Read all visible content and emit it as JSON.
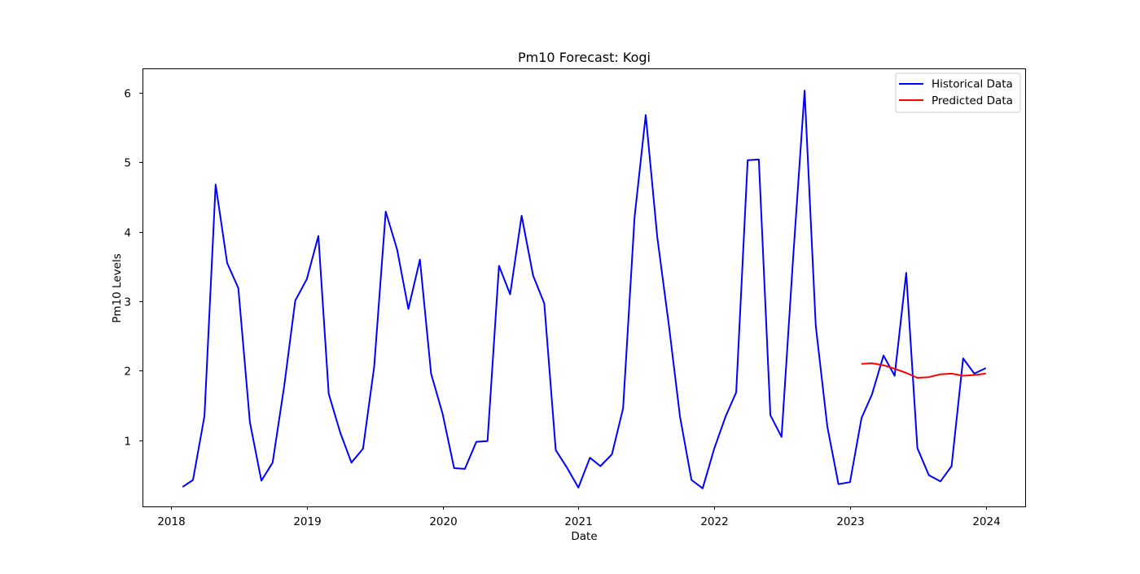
{
  "chart_data": {
    "type": "line",
    "title": "Pm10 Forecast: Kogi",
    "xlabel": "Date",
    "ylabel": "Pm10 Levels",
    "xlim": [
      2017.79,
      2024.29
    ],
    "ylim": [
      0.05,
      6.35
    ],
    "x_ticks": [
      2018,
      2019,
      2020,
      2021,
      2022,
      2023,
      2024
    ],
    "x_tick_labels": [
      "2018",
      "2019",
      "2020",
      "2021",
      "2022",
      "2023",
      "2024"
    ],
    "y_ticks": [
      1,
      2,
      3,
      4,
      5,
      6
    ],
    "y_tick_labels": [
      "1",
      "2",
      "3",
      "4",
      "5",
      "6"
    ],
    "grid": false,
    "legend": "top-right",
    "series": [
      {
        "name": "Historical Data",
        "color": "#0000ff",
        "x": [
          "2018-01-31",
          "2018-02-28",
          "2018-03-31",
          "2018-04-30",
          "2018-05-31",
          "2018-06-30",
          "2018-07-31",
          "2018-08-31",
          "2018-09-30",
          "2018-10-31",
          "2018-11-30",
          "2018-12-31",
          "2019-01-31",
          "2019-02-28",
          "2019-03-31",
          "2019-04-30",
          "2019-05-31",
          "2019-06-30",
          "2019-07-31",
          "2019-08-31",
          "2019-09-30",
          "2019-10-31",
          "2019-11-30",
          "2019-12-31",
          "2020-01-31",
          "2020-02-29",
          "2020-03-31",
          "2020-04-30",
          "2020-05-31",
          "2020-06-30",
          "2020-07-31",
          "2020-08-31",
          "2020-09-30",
          "2020-10-31",
          "2020-11-30",
          "2020-12-31",
          "2021-01-31",
          "2021-02-28",
          "2021-03-31",
          "2021-04-30",
          "2021-05-31",
          "2021-06-30",
          "2021-07-31",
          "2021-08-31",
          "2021-09-30",
          "2021-10-31",
          "2021-11-30",
          "2021-12-31",
          "2022-01-31",
          "2022-02-28",
          "2022-03-31",
          "2022-04-30",
          "2022-05-31",
          "2022-06-30",
          "2022-07-31",
          "2022-08-31",
          "2022-09-30",
          "2022-10-31",
          "2022-11-30",
          "2022-12-31",
          "2023-01-31",
          "2023-02-28",
          "2023-03-31",
          "2023-04-30",
          "2023-05-31",
          "2023-06-30",
          "2023-07-31",
          "2023-08-31",
          "2023-09-30",
          "2023-10-31",
          "2023-11-30",
          "2023-12-31"
        ],
        "values": [
          0.33,
          0.43,
          1.35,
          4.68,
          3.55,
          3.19,
          1.26,
          0.42,
          0.68,
          1.77,
          3.01,
          3.32,
          3.94,
          1.67,
          1.11,
          0.68,
          0.88,
          2.06,
          4.29,
          3.74,
          2.89,
          3.6,
          1.96,
          1.38,
          0.6,
          0.59,
          0.98,
          0.99,
          3.51,
          3.1,
          4.23,
          3.37,
          2.97,
          0.86,
          0.61,
          0.32,
          0.75,
          0.63,
          0.8,
          1.46,
          4.21,
          5.68,
          3.92,
          2.66,
          1.34,
          0.43,
          0.31,
          0.88,
          1.35,
          1.69,
          5.03,
          5.04,
          1.36,
          1.05,
          3.62,
          6.03,
          2.65,
          1.2,
          0.37,
          0.4,
          1.32,
          1.66,
          2.22,
          1.93,
          3.41,
          0.89,
          0.5,
          0.41,
          0.63,
          2.18,
          1.96,
          2.04
        ]
      },
      {
        "name": "Predicted Data",
        "color": "#ff0000",
        "x": [
          "2023-01-31",
          "2023-02-28",
          "2023-03-31",
          "2023-04-30",
          "2023-05-31",
          "2023-06-30",
          "2023-07-31",
          "2023-08-31",
          "2023-09-30",
          "2023-10-31",
          "2023-11-30",
          "2023-12-31"
        ],
        "values": [
          2.1,
          2.11,
          2.08,
          2.03,
          1.97,
          1.9,
          1.91,
          1.95,
          1.96,
          1.93,
          1.94,
          1.96
        ]
      }
    ]
  }
}
